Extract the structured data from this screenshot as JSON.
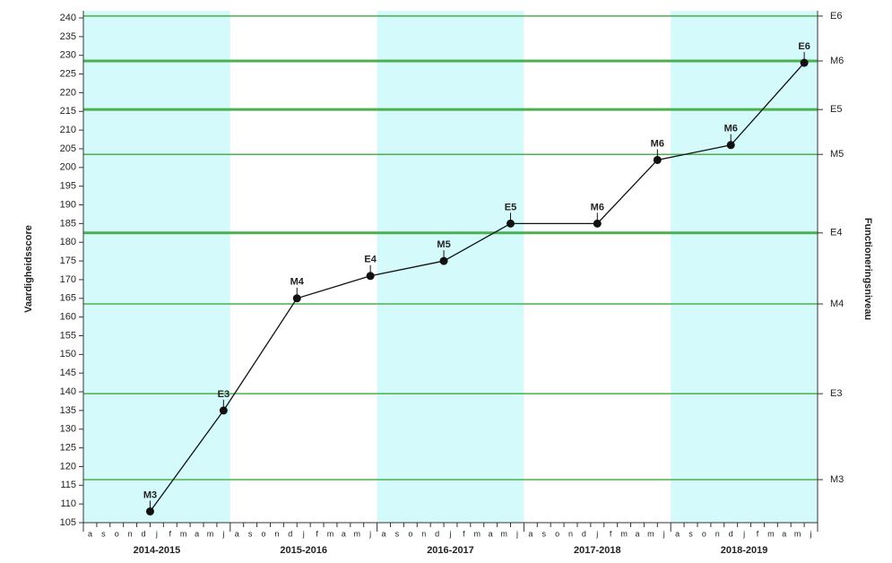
{
  "chart_data": {
    "type": "line",
    "y_label": "Vaardigheidsscore",
    "y2_label": "Functioneringsniveau",
    "xlim": [
      0,
      55
    ],
    "xticks": [
      0,
      11,
      22,
      33,
      44,
      55
    ],
    "ylim": [
      105,
      240
    ],
    "yticks": [
      105,
      110,
      115,
      120,
      125,
      130,
      135,
      140,
      145,
      150,
      155,
      160,
      165,
      170,
      175,
      180,
      185,
      190,
      195,
      200,
      205,
      210,
      215,
      220,
      225,
      230,
      235,
      240
    ],
    "y2ticks": [
      {
        "value": 240.5,
        "label": "E6"
      },
      {
        "value": 228.5,
        "label": "M6"
      },
      {
        "value": 215.5,
        "label": "E5"
      },
      {
        "value": 203.5,
        "label": "M5"
      },
      {
        "value": 182.5,
        "label": "E4"
      },
      {
        "value": 163.5,
        "label": "M4"
      },
      {
        "value": 139.5,
        "label": "E3"
      },
      {
        "value": 116.5,
        "label": "M3"
      }
    ],
    "y2_line_widths": [
      1.5,
      3,
      3,
      1.5,
      3,
      1.5,
      1.5,
      1.5
    ],
    "level_color": "#4caf50",
    "years": [
      "2014-2015",
      "2015-2016",
      "2016-2017",
      "2017-2018",
      "2018-2019"
    ],
    "month_labels": [
      "a",
      "s",
      "o",
      "n",
      "d",
      "j",
      "f",
      "m",
      "a",
      "m",
      "j"
    ],
    "band_color": "#d4fafc",
    "color": "#111111",
    "x": [
      5,
      10.5,
      16,
      21.5,
      27,
      32,
      38.5,
      43,
      48.5,
      54
    ],
    "values": [
      108,
      135,
      165,
      171,
      175,
      185,
      185,
      202,
      206,
      228
    ],
    "point_labels": [
      "M3",
      "E3",
      "M4",
      "E4",
      "M5",
      "E5",
      "M6",
      "M6",
      "M6",
      "E6"
    ]
  }
}
